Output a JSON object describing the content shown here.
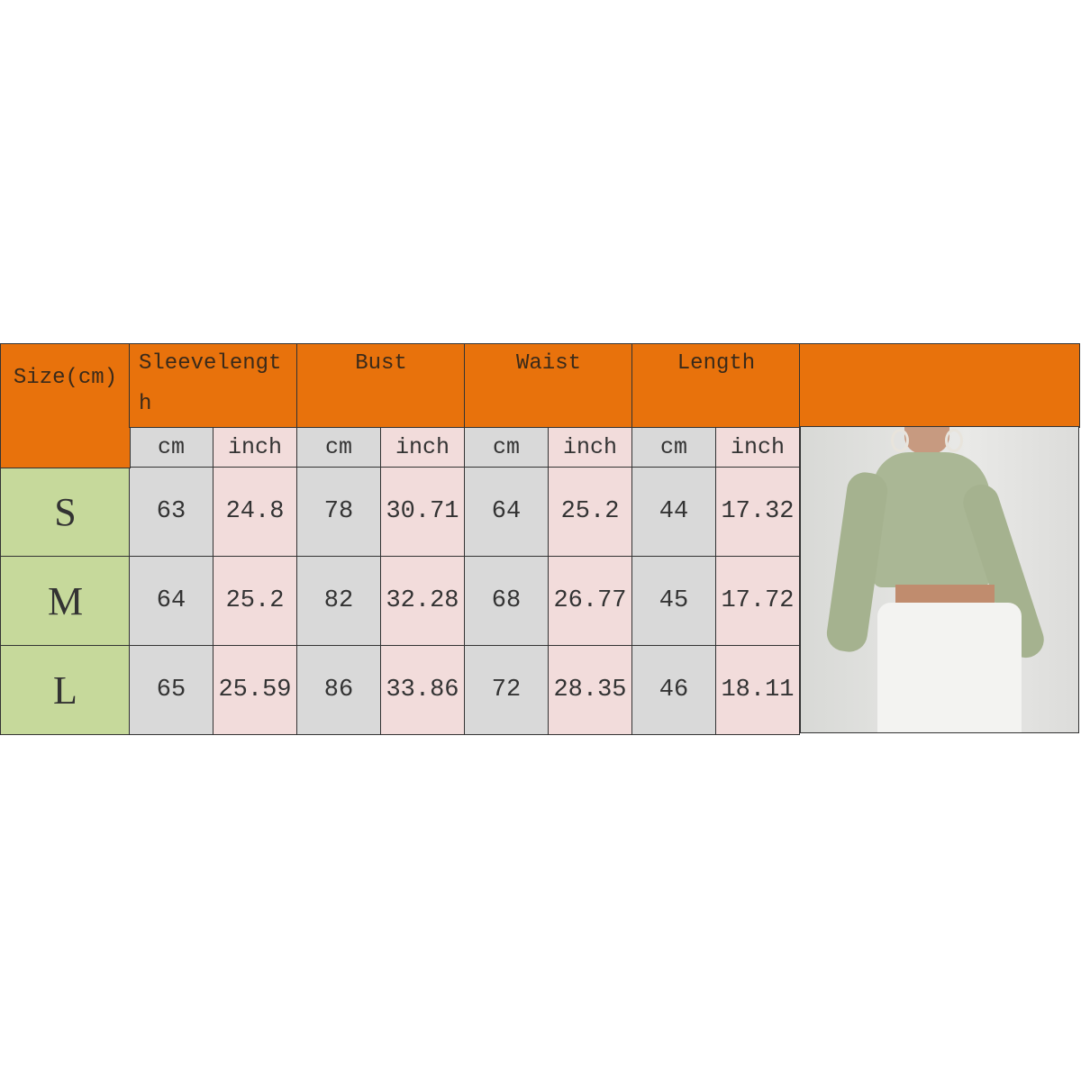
{
  "table": {
    "size_header": "Size(cm)",
    "columns": [
      {
        "label_line1": "Sleevelengt",
        "label_line2": "h"
      },
      {
        "label_line1": "Bust"
      },
      {
        "label_line1": "Waist"
      },
      {
        "label_line1": "Length"
      }
    ],
    "units": [
      "cm",
      "inch",
      "cm",
      "inch",
      "cm",
      "inch",
      "cm",
      "inch"
    ],
    "rows": [
      {
        "size": "S",
        "values": [
          "63",
          "24.8",
          "78",
          "30.71",
          "64",
          "25.2",
          "44",
          "17.32"
        ]
      },
      {
        "size": "M",
        "values": [
          "64",
          "25.2",
          "82",
          "32.28",
          "68",
          "26.77",
          "45",
          "17.72"
        ]
      },
      {
        "size": "L",
        "values": [
          "65",
          "25.59",
          "86",
          "33.86",
          "72",
          "28.35",
          "46",
          "18.11"
        ]
      }
    ]
  },
  "colors": {
    "header": "#E8720C",
    "size_cell": "#C6D99B",
    "cm_cell": "#D9D9D9",
    "inch_cell": "#F2DCDB"
  },
  "photo": {
    "subject": "model wearing sage green long-sleeve crop top with white pants"
  }
}
